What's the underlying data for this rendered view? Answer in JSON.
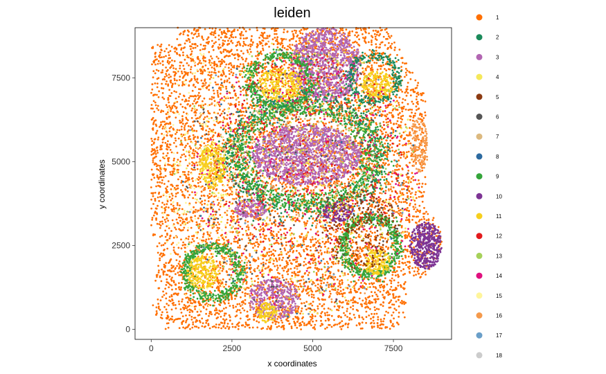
{
  "chart_data": {
    "type": "scatter",
    "title": "leiden",
    "xlabel": "x coordinates",
    "ylabel": "y coordinates",
    "xlim": [
      -500,
      9300
    ],
    "ylim": [
      -300,
      9000
    ],
    "x_ticks": [
      0,
      2500,
      5000,
      7500
    ],
    "y_ticks": [
      0,
      2500,
      5000,
      7500
    ],
    "x_tick_labels": [
      "0",
      "2500",
      "5000",
      "7500"
    ],
    "y_tick_labels": [
      "0",
      "2500",
      "5000",
      "7500"
    ],
    "grid": false,
    "legend_position": "right",
    "categories": [
      {
        "name": "1",
        "color": "#ff6f00"
      },
      {
        "name": "2",
        "color": "#1b8a5a"
      },
      {
        "name": "3",
        "color": "#b266b2"
      },
      {
        "name": "4",
        "color": "#f5e85a"
      },
      {
        "name": "5",
        "color": "#8c3a11"
      },
      {
        "name": "6",
        "color": "#555555"
      },
      {
        "name": "7",
        "color": "#dcb97f"
      },
      {
        "name": "8",
        "color": "#2c6aa0"
      },
      {
        "name": "9",
        "color": "#34a53a"
      },
      {
        "name": "10",
        "color": "#7d3494"
      },
      {
        "name": "11",
        "color": "#f7cf1d"
      },
      {
        "name": "12",
        "color": "#e31a1c"
      },
      {
        "name": "13",
        "color": "#a6d15a"
      },
      {
        "name": "14",
        "color": "#e0107f"
      },
      {
        "name": "15",
        "color": "#fff59b"
      },
      {
        "name": "16",
        "color": "#f59a4c"
      },
      {
        "name": "17",
        "color": "#6a9fc9"
      },
      {
        "name": "18",
        "color": "#cccccc"
      }
    ],
    "regions": [
      {
        "cluster": "1",
        "shape": "tissue",
        "points": 7000
      },
      {
        "cluster": "3",
        "cx": 4800,
        "cy": 5200,
        "rx": 1700,
        "ry": 900,
        "points": 1400
      },
      {
        "cluster": "3",
        "cx": 5400,
        "cy": 7900,
        "rx": 1100,
        "ry": 1100,
        "points": 1000
      },
      {
        "cluster": "3",
        "cx": 3800,
        "cy": 900,
        "rx": 800,
        "ry": 600,
        "points": 350
      },
      {
        "cluster": "3",
        "cx": 3100,
        "cy": 3600,
        "rx": 500,
        "ry": 300,
        "points": 150
      },
      {
        "cluster": "9",
        "cx": 4800,
        "cy": 5200,
        "rx": 2500,
        "ry": 1700,
        "ring": true,
        "points": 1100
      },
      {
        "cluster": "9",
        "cx": 1900,
        "cy": 1700,
        "rx": 1000,
        "ry": 900,
        "ring": true,
        "points": 450
      },
      {
        "cluster": "9",
        "cx": 6800,
        "cy": 2500,
        "rx": 1000,
        "ry": 1000,
        "ring": true,
        "points": 500
      },
      {
        "cluster": "9",
        "cx": 4000,
        "cy": 7400,
        "rx": 1100,
        "ry": 900,
        "ring": true,
        "points": 400
      },
      {
        "cluster": "2",
        "cx": 4800,
        "cy": 5200,
        "rx": 2800,
        "ry": 2000,
        "ring": true,
        "points": 400
      },
      {
        "cluster": "2",
        "cx": 6900,
        "cy": 7500,
        "rx": 900,
        "ry": 800,
        "ring": true,
        "points": 250
      },
      {
        "cluster": "11",
        "cx": 1900,
        "cy": 4900,
        "rx": 400,
        "ry": 700,
        "points": 300
      },
      {
        "cluster": "11",
        "cx": 4000,
        "cy": 7300,
        "rx": 700,
        "ry": 500,
        "points": 280
      },
      {
        "cluster": "11",
        "cx": 7000,
        "cy": 7300,
        "rx": 500,
        "ry": 400,
        "points": 200
      },
      {
        "cluster": "11",
        "cx": 1600,
        "cy": 1700,
        "rx": 500,
        "ry": 500,
        "points": 220
      },
      {
        "cluster": "11",
        "cx": 7000,
        "cy": 2000,
        "rx": 400,
        "ry": 400,
        "points": 150
      },
      {
        "cluster": "11",
        "cx": 3600,
        "cy": 500,
        "rx": 300,
        "ry": 300,
        "points": 100
      },
      {
        "cluster": "10",
        "cx": 8500,
        "cy": 2500,
        "rx": 500,
        "ry": 700,
        "points": 450
      },
      {
        "cluster": "10",
        "cx": 5800,
        "cy": 3500,
        "rx": 500,
        "ry": 300,
        "points": 120
      },
      {
        "cluster": "12",
        "cx": 4800,
        "cy": 5200,
        "rx": 3000,
        "ry": 3000,
        "points": 350
      },
      {
        "cluster": "14",
        "cx": 4800,
        "cy": 4400,
        "rx": 3500,
        "ry": 4000,
        "points": 300
      },
      {
        "cluster": "5",
        "cx": 6500,
        "cy": 3000,
        "rx": 1200,
        "ry": 1200,
        "points": 200
      },
      {
        "cluster": "6",
        "cx": 4500,
        "cy": 4500,
        "rx": 3500,
        "ry": 4000,
        "points": 250
      },
      {
        "cluster": "7",
        "cx": 4500,
        "cy": 5000,
        "rx": 2500,
        "ry": 1800,
        "points": 250
      },
      {
        "cluster": "4",
        "cx": 4500,
        "cy": 4500,
        "rx": 3800,
        "ry": 4200,
        "points": 350
      },
      {
        "cluster": "15",
        "cx": 1500,
        "cy": 4500,
        "rx": 1200,
        "ry": 4000,
        "points": 200
      },
      {
        "cluster": "16",
        "cx": 8300,
        "cy": 5500,
        "rx": 300,
        "ry": 800,
        "points": 150
      },
      {
        "cluster": "16",
        "cx": 4500,
        "cy": 4500,
        "rx": 3800,
        "ry": 4200,
        "points": 200
      },
      {
        "cluster": "13",
        "cx": 4500,
        "cy": 4500,
        "rx": 3800,
        "ry": 4200,
        "points": 120
      },
      {
        "cluster": "8",
        "cx": 4500,
        "cy": 4500,
        "rx": 3800,
        "ry": 4200,
        "points": 60
      },
      {
        "cluster": "17",
        "cx": 4500,
        "cy": 4500,
        "rx": 3800,
        "ry": 4200,
        "points": 60
      }
    ]
  }
}
